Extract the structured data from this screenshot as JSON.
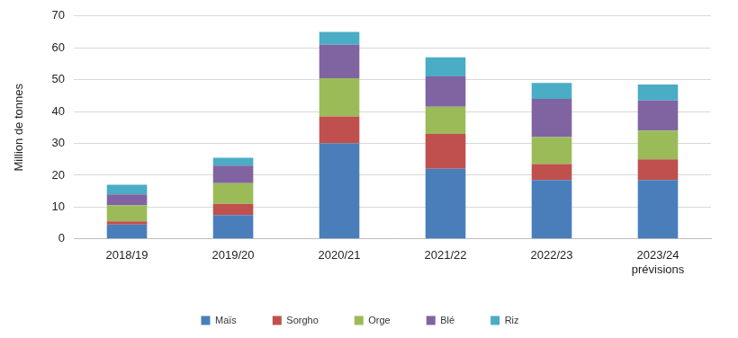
{
  "chart_data": {
    "type": "bar",
    "y_label": "Million de tonnes",
    "categories": [
      "2018/19",
      "2019/20",
      "2020/21",
      "2021/22",
      "2022/23",
      [
        "2023/24",
        "prévisions"
      ]
    ],
    "series": [
      {
        "name": "Maïs",
        "color": "#4a7ebb",
        "values": [
          4.5,
          7.5,
          30,
          22,
          18.5,
          18.5
        ]
      },
      {
        "name": "Sorgho",
        "color": "#c0504d",
        "values": [
          1,
          3.5,
          8.5,
          11,
          5,
          6.5
        ]
      },
      {
        "name": "Orge",
        "color": "#9bbb59",
        "values": [
          5,
          6.5,
          12,
          8.5,
          8.5,
          9
        ]
      },
      {
        "name": "Blé",
        "color": "#8064a2",
        "values": [
          3.5,
          5.5,
          10.5,
          9.5,
          12,
          9.5
        ]
      },
      {
        "name": "Riz",
        "color": "#4bacc6",
        "values": [
          3,
          2.5,
          4,
          6,
          5,
          5
        ]
      }
    ],
    "ylim": [
      0,
      70
    ],
    "yticks": [
      0,
      10,
      20,
      30,
      40,
      50,
      60,
      70
    ],
    "stacked": true,
    "grid": true,
    "legend": "bottom"
  }
}
